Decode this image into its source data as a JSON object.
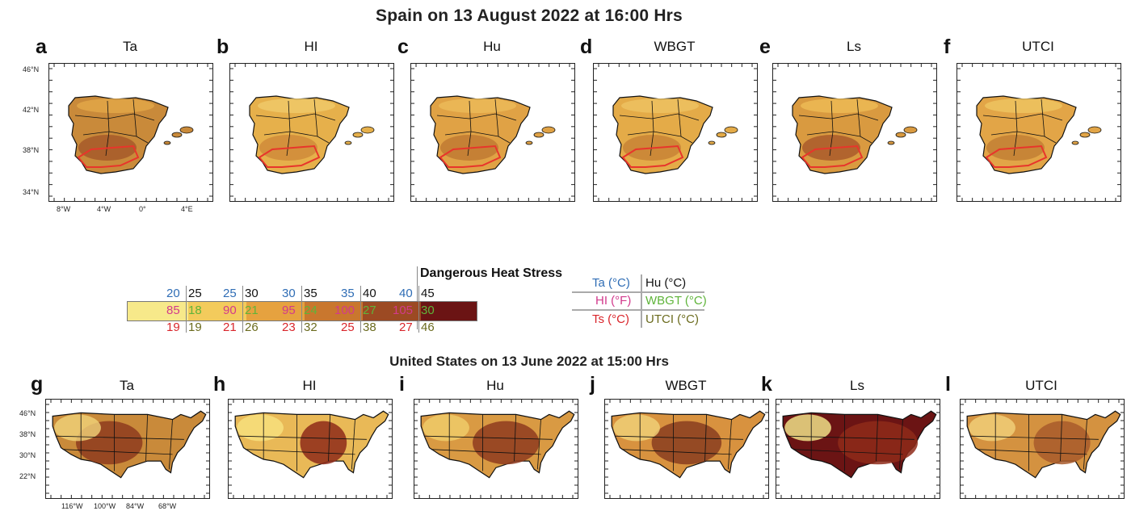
{
  "titles": {
    "top": "Spain on 13 August 2022 at 16:00 Hrs",
    "bottom": "United States on 13  June 2022 at 15:00 Hrs"
  },
  "spain_panels": [
    {
      "letter": "a",
      "variable": "Ta"
    },
    {
      "letter": "b",
      "variable": "HI"
    },
    {
      "letter": "c",
      "variable": "Hu"
    },
    {
      "letter": "d",
      "variable": "WBGT"
    },
    {
      "letter": "e",
      "variable": "Ls"
    },
    {
      "letter": "f",
      "variable": "UTCI"
    }
  ],
  "us_panels": [
    {
      "letter": "g",
      "variable": "Ta"
    },
    {
      "letter": "h",
      "variable": "HI"
    },
    {
      "letter": "i",
      "variable": "Hu"
    },
    {
      "letter": "j",
      "variable": "WBGT"
    },
    {
      "letter": "k",
      "variable": "Ls"
    },
    {
      "letter": "l",
      "variable": "UTCI"
    }
  ],
  "spain_axes": {
    "lat_labels": [
      "46°N",
      "42°N",
      "38°N",
      "34°N"
    ],
    "lon_labels": [
      "8°W",
      "4°W",
      "0°",
      "4°E"
    ]
  },
  "us_axes": {
    "lat_labels": [
      "46°N",
      "38°N",
      "30°N",
      "22°N"
    ],
    "lon_labels": [
      "116°W",
      "100°W",
      "84°W",
      "68°W"
    ]
  },
  "colorbar": {
    "title": "Dangerous Heat Stress",
    "colors": [
      "#f7e98a",
      "#f3cb5c",
      "#e6a23f",
      "#c9772e",
      "#9c4a23",
      "#6b1414"
    ],
    "top_row": [
      {
        "a": "20",
        "b": "25"
      },
      {
        "a": "25",
        "b": "30"
      },
      {
        "a": "30",
        "b": "35"
      },
      {
        "a": "35",
        "b": "40"
      },
      {
        "a": "40",
        "b": "45"
      }
    ],
    "mid_row": [
      {
        "a": "85",
        "b": "18"
      },
      {
        "a": "90",
        "b": "21"
      },
      {
        "a": "95",
        "b": "24"
      },
      {
        "a": "100",
        "b": "27"
      },
      {
        "a": "105",
        "b": "30"
      }
    ],
    "bottom_row": [
      {
        "a": "19",
        "b": "19"
      },
      {
        "a": "21",
        "b": "26"
      },
      {
        "a": "23",
        "b": "32"
      },
      {
        "a": "25",
        "b": "38"
      },
      {
        "a": "27",
        "b": "46"
      }
    ]
  },
  "legend": {
    "left": [
      "Ta (°C)",
      "HI (°F)",
      "Ts (°C)"
    ],
    "right": [
      "Hu (°C)",
      "WBGT (°C)",
      "UTCI (°C)"
    ],
    "colors": {
      "ta": "#2f6db5",
      "hu": "#111111",
      "hi": "#d23a8c",
      "wbgt": "#5fb43a",
      "ts": "#d9252b",
      "utci": "#6b6b1e"
    }
  }
}
